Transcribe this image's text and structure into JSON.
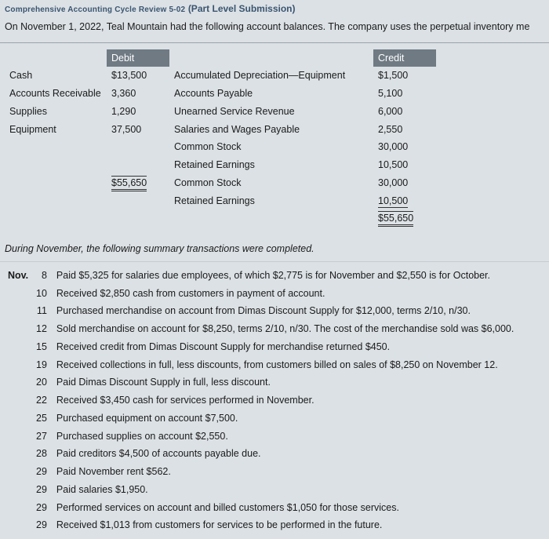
{
  "titleLine": {
    "pre": "Comprehensive Accounting Cycle Review 5-02",
    "part": "(Part Level Submission)"
  },
  "intro": "On November 1, 2022, Teal Mountain had the following account balances. The company uses the perpetual inventory me",
  "headers": {
    "debit": "Debit",
    "credit": "Credit"
  },
  "debits": [
    {
      "name": "Cash",
      "amount": "$13,500"
    },
    {
      "name": "Accounts Receivable",
      "amount": "3,360"
    },
    {
      "name": "Supplies",
      "amount": "1,290"
    },
    {
      "name": "Equipment",
      "amount": "37,500"
    }
  ],
  "debitTotal": "$55,650",
  "credits": [
    {
      "name": "Accumulated Depreciation—Equipment",
      "amount": "$1,500"
    },
    {
      "name": "Accounts Payable",
      "amount": "5,100"
    },
    {
      "name": "Unearned Service Revenue",
      "amount": "6,000"
    },
    {
      "name": "Salaries and Wages Payable",
      "amount": "2,550"
    },
    {
      "name": "Common Stock",
      "amount": "30,000"
    },
    {
      "name": "Retained Earnings",
      "amount": "10,500"
    }
  ],
  "creditTotal": "$55,650",
  "dividerText": "During November, the following summary transactions were completed.",
  "monthAbbr": "Nov.",
  "transactions": [
    {
      "day": "8",
      "desc": "Paid $5,325 for salaries due employees, of which $2,775 is for November and $2,550 is for October."
    },
    {
      "day": "10",
      "desc": "Received $2,850 cash from customers in payment of account."
    },
    {
      "day": "11",
      "desc": "Purchased merchandise on account from Dimas Discount Supply for $12,000, terms 2/10, n/30."
    },
    {
      "day": "12",
      "desc": "Sold merchandise on account for $8,250, terms 2/10, n/30. The cost of the merchandise sold was $6,000."
    },
    {
      "day": "15",
      "desc": "Received credit from Dimas Discount Supply for merchandise returned $450."
    },
    {
      "day": "19",
      "desc": "Received collections in full, less discounts, from customers billed on sales of $8,250 on November 12."
    },
    {
      "day": "20",
      "desc": "Paid Dimas Discount Supply in full, less discount."
    },
    {
      "day": "22",
      "desc": "Received $3,450 cash for services performed in November."
    },
    {
      "day": "25",
      "desc": "Purchased equipment on account $7,500."
    },
    {
      "day": "27",
      "desc": "Purchased supplies on account $2,550."
    },
    {
      "day": "28",
      "desc": "Paid creditors $4,500 of accounts payable due."
    },
    {
      "day": "29",
      "desc": "Paid November rent $562."
    },
    {
      "day": "29",
      "desc": "Paid salaries $1,950."
    },
    {
      "day": "29",
      "desc": "Performed services on account and billed customers $1,050 for those services."
    },
    {
      "day": "29",
      "desc": "Received $1,013 from customers for services to be performed in the future."
    }
  ]
}
